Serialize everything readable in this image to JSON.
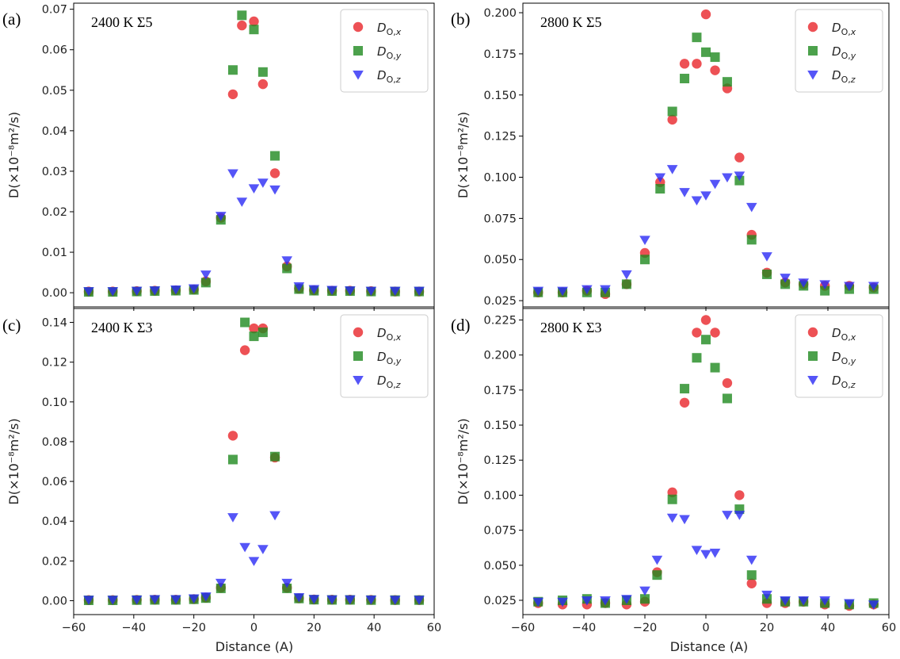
{
  "x_axis_label": "Distance (A)",
  "colors": {
    "x": "#e8262a",
    "y": "#1f8a1f",
    "z": "#2b2bf5"
  },
  "legend": [
    {
      "key": "x",
      "main": "D",
      "sub": "O,",
      "var": "x",
      "marker": "circle"
    },
    {
      "key": "y",
      "main": "D",
      "sub": "O,",
      "var": "y",
      "marker": "square"
    },
    {
      "key": "z",
      "main": "D",
      "sub": "O,",
      "var": "z",
      "marker": "triangle-down"
    }
  ],
  "chart_data": [
    {
      "type": "scatter",
      "panel": "(a)",
      "annotation": "2400 K Σ5",
      "ylabel": "D(×10⁻⁸m²/s)",
      "xlim": [
        -60,
        60
      ],
      "ylim": [
        -0.0035,
        0.0715
      ],
      "xticks": [
        -60,
        -40,
        -20,
        0,
        20,
        40,
        60
      ],
      "yticks": [
        0.0,
        0.01,
        0.02,
        0.03,
        0.04,
        0.05,
        0.06,
        0.07
      ],
      "ytick_labels": [
        "0.00",
        "0.01",
        "0.02",
        "0.03",
        "0.04",
        "0.05",
        "0.06",
        "0.07"
      ],
      "x": [
        -55,
        -47,
        -39,
        -33,
        -26,
        -20,
        -16,
        -11,
        -7,
        -4,
        0,
        3,
        7,
        11,
        15,
        20,
        26,
        32,
        39,
        47,
        55
      ],
      "series": [
        {
          "name": "D_O,x",
          "key": "x",
          "values": [
            0.0003,
            0.0003,
            0.0004,
            0.0005,
            0.0006,
            0.0008,
            0.0028,
            0.0185,
            0.049,
            0.066,
            0.067,
            0.0515,
            0.0295,
            0.0065,
            0.001,
            0.0006,
            0.0005,
            0.0005,
            0.0004,
            0.0003,
            0.0003
          ]
        },
        {
          "name": "D_O,y",
          "key": "y",
          "values": [
            0.0002,
            0.0002,
            0.0003,
            0.0004,
            0.0005,
            0.0007,
            0.0025,
            0.018,
            0.055,
            0.0685,
            0.065,
            0.0545,
            0.0338,
            0.006,
            0.0009,
            0.0005,
            0.0004,
            0.0004,
            0.0003,
            0.0003,
            0.0003
          ]
        },
        {
          "name": "D_O,z",
          "key": "z",
          "values": [
            0.0004,
            0.0004,
            0.0005,
            0.0006,
            0.0008,
            0.0011,
            0.0045,
            0.019,
            0.0295,
            0.0225,
            0.0258,
            0.0272,
            0.0255,
            0.008,
            0.0016,
            0.0009,
            0.0007,
            0.0006,
            0.0005,
            0.0005,
            0.0005
          ]
        }
      ]
    },
    {
      "type": "scatter",
      "panel": "(b)",
      "annotation": "2800 K Σ5",
      "ylabel": "D(×10⁻⁸m²/s)",
      "xlim": [
        -60,
        60
      ],
      "ylim": [
        0.0212,
        0.2058
      ],
      "xticks": [
        -60,
        -40,
        -20,
        0,
        20,
        40,
        60
      ],
      "yticks": [
        0.025,
        0.05,
        0.075,
        0.1,
        0.125,
        0.15,
        0.175,
        0.2
      ],
      "ytick_labels": [
        "0.025",
        "0.050",
        "0.075",
        "0.100",
        "0.125",
        "0.150",
        "0.175",
        "0.200"
      ],
      "x": [
        -55,
        -47,
        -39,
        -33,
        -26,
        -20,
        -15,
        -11,
        -7,
        -3,
        0,
        3,
        7,
        11,
        15,
        20,
        26,
        32,
        39,
        47,
        55
      ],
      "series": [
        {
          "name": "D_O,x",
          "key": "x",
          "values": [
            0.03,
            0.03,
            0.031,
            0.029,
            0.035,
            0.054,
            0.097,
            0.135,
            0.169,
            0.169,
            0.199,
            0.165,
            0.154,
            0.112,
            0.065,
            0.042,
            0.036,
            0.035,
            0.034,
            0.034,
            0.033
          ]
        },
        {
          "name": "D_O,y",
          "key": "y",
          "values": [
            0.03,
            0.03,
            0.03,
            0.03,
            0.035,
            0.05,
            0.093,
            0.14,
            0.16,
            0.185,
            0.176,
            0.173,
            0.158,
            0.098,
            0.062,
            0.041,
            0.035,
            0.034,
            0.031,
            0.032,
            0.032
          ]
        },
        {
          "name": "D_O,z",
          "key": "z",
          "values": [
            0.031,
            0.031,
            0.032,
            0.032,
            0.041,
            0.062,
            0.1,
            0.105,
            0.091,
            0.086,
            0.089,
            0.096,
            0.1,
            0.101,
            0.082,
            0.052,
            0.039,
            0.036,
            0.035,
            0.034,
            0.034
          ]
        }
      ]
    },
    {
      "type": "scatter",
      "panel": "(c)",
      "annotation": "2400 K Σ3",
      "ylabel": "D(×10⁻⁸m²/s)",
      "xlim": [
        -60,
        60
      ],
      "ylim": [
        -0.007,
        0.147
      ],
      "xticks": [
        -60,
        -40,
        -20,
        0,
        20,
        40,
        60
      ],
      "yticks": [
        0.0,
        0.02,
        0.04,
        0.06,
        0.08,
        0.1,
        0.12,
        0.14
      ],
      "ytick_labels": [
        "0.00",
        "0.02",
        "0.04",
        "0.06",
        "0.08",
        "0.10",
        "0.12",
        "0.14"
      ],
      "x": [
        -55,
        -47,
        -39,
        -33,
        -26,
        -20,
        -16,
        -11,
        -7,
        -3,
        0,
        3,
        7,
        11,
        15,
        20,
        26,
        32,
        39,
        47,
        55
      ],
      "series": [
        {
          "name": "D_O,x",
          "key": "x",
          "values": [
            0.0003,
            0.0003,
            0.0004,
            0.0005,
            0.0005,
            0.0008,
            0.0015,
            0.0065,
            0.083,
            0.126,
            0.137,
            0.137,
            0.072,
            0.0065,
            0.0012,
            0.0006,
            0.0005,
            0.0005,
            0.0004,
            0.0003,
            0.0003
          ]
        },
        {
          "name": "D_O,y",
          "key": "y",
          "values": [
            0.0002,
            0.0002,
            0.0003,
            0.0004,
            0.0004,
            0.0007,
            0.0013,
            0.0062,
            0.071,
            0.14,
            0.133,
            0.135,
            0.0725,
            0.0062,
            0.0011,
            0.0005,
            0.0004,
            0.0004,
            0.0003,
            0.0003,
            0.0003
          ]
        },
        {
          "name": "D_O,z",
          "key": "z",
          "values": [
            0.0005,
            0.0005,
            0.0006,
            0.0008,
            0.0008,
            0.0012,
            0.0022,
            0.009,
            0.042,
            0.027,
            0.02,
            0.026,
            0.043,
            0.009,
            0.0018,
            0.0009,
            0.0007,
            0.0007,
            0.0006,
            0.0005,
            0.0005
          ]
        }
      ]
    },
    {
      "type": "scatter",
      "panel": "(d)",
      "annotation": "2800 K Σ3",
      "ylabel": "D(×10⁻⁸m²/s)",
      "xlim": [
        -60,
        60
      ],
      "ylim": [
        0.0148,
        0.2332
      ],
      "xticks": [
        -60,
        -40,
        -20,
        0,
        20,
        40,
        60
      ],
      "yticks": [
        0.025,
        0.05,
        0.075,
        0.1,
        0.125,
        0.15,
        0.175,
        0.2,
        0.225
      ],
      "ytick_labels": [
        "0.025",
        "0.050",
        "0.075",
        "0.100",
        "0.125",
        "0.150",
        "0.175",
        "0.200",
        "0.225"
      ],
      "x": [
        -55,
        -47,
        -39,
        -33,
        -26,
        -20,
        -16,
        -11,
        -7,
        -3,
        0,
        3,
        7,
        11,
        15,
        20,
        26,
        32,
        39,
        47,
        55
      ],
      "series": [
        {
          "name": "D_O,x",
          "key": "x",
          "values": [
            0.023,
            0.022,
            0.022,
            0.023,
            0.022,
            0.024,
            0.045,
            0.102,
            0.166,
            0.216,
            0.225,
            0.216,
            0.18,
            0.1,
            0.037,
            0.023,
            0.023,
            0.024,
            0.022,
            0.021,
            0.022
          ]
        },
        {
          "name": "D_O,y",
          "key": "y",
          "values": [
            0.024,
            0.025,
            0.026,
            0.023,
            0.025,
            0.026,
            0.043,
            0.097,
            0.176,
            0.198,
            0.211,
            0.191,
            0.169,
            0.09,
            0.043,
            0.026,
            0.024,
            0.024,
            0.023,
            0.022,
            0.023
          ]
        },
        {
          "name": "D_O,z",
          "key": "z",
          "values": [
            0.024,
            0.024,
            0.025,
            0.025,
            0.026,
            0.032,
            0.054,
            0.084,
            0.083,
            0.061,
            0.058,
            0.059,
            0.086,
            0.086,
            0.054,
            0.029,
            0.025,
            0.025,
            0.025,
            0.023,
            0.022
          ]
        }
      ]
    }
  ]
}
